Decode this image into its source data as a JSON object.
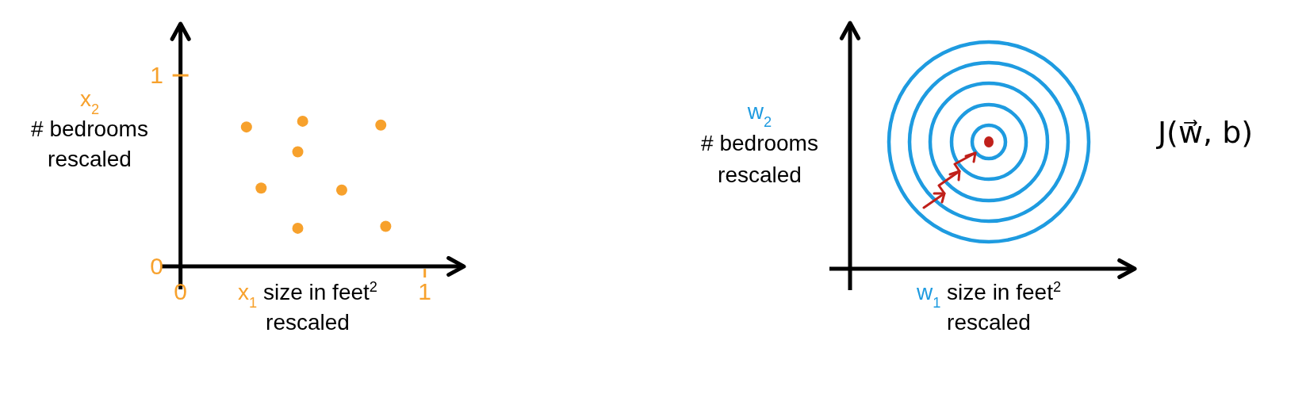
{
  "chart_data": [
    {
      "type": "scatter",
      "xlabel": "x$_{1}$ size in feet$^{2}$\nrescaled",
      "ylabel": "x$_{2}$\n# bedrooms\nrescaled",
      "xlim": [
        -0.08,
        1.16
      ],
      "ylim": [
        -0.12,
        1.27
      ],
      "xticks": [
        0,
        1
      ],
      "yticks": [
        0,
        1
      ],
      "marker": "circle",
      "series": [
        {
          "color": "#f7a12c",
          "x": [
            0.27,
            0.5,
            0.82,
            0.48,
            0.33,
            0.66,
            0.48,
            0.84
          ],
          "values": [
            0.73,
            0.76,
            0.74,
            0.6,
            0.41,
            0.4,
            0.2,
            0.21
          ]
        }
      ]
    },
    {
      "type": "other",
      "title": "J(w⃗, b)",
      "xlabel": "w$_{1}$ size in feet$^{2}$\nrescaled",
      "ylabel": "w$_{2}$\n# bedrooms\nrescaled"
    }
  ]
}
